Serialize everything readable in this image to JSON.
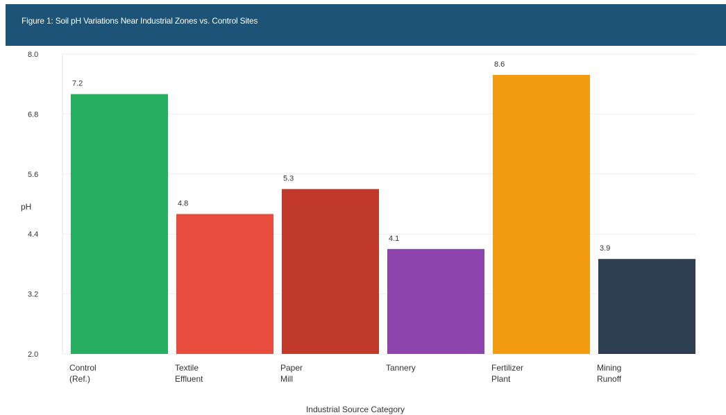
{
  "header": {
    "title": "Figure 1: Soil pH Variations Near Industrial Zones vs. Control Sites"
  },
  "chart_data": {
    "type": "bar",
    "title": "Figure 1: Soil pH Variations Near Industrial Zones vs. Control Sites",
    "xlabel": "Industrial Source Category",
    "ylabel": "pH",
    "ylim": [
      2.0,
      8.0
    ],
    "yticks": [
      "2.0",
      "3.2",
      "4.4",
      "5.6",
      "6.8",
      "8.0"
    ],
    "categories": [
      [
        "Control",
        "(Ref.)"
      ],
      [
        "Textile",
        "Effluent"
      ],
      [
        "Paper",
        "Mill"
      ],
      [
        "Tannery"
      ],
      [
        "Fertilizer",
        "Plant"
      ],
      [
        "Mining",
        "Runoff"
      ]
    ],
    "values": [
      7.2,
      4.8,
      5.3,
      4.1,
      8.6,
      3.9
    ],
    "value_labels": [
      "7.2",
      "4.8",
      "5.3",
      "4.1",
      "8.6",
      "3.9"
    ],
    "colors": [
      "#27ae60",
      "#e74c3c",
      "#c0392b",
      "#8e44ad",
      "#f39c12",
      "#2c3e50"
    ],
    "grid": true,
    "legend": "none"
  }
}
